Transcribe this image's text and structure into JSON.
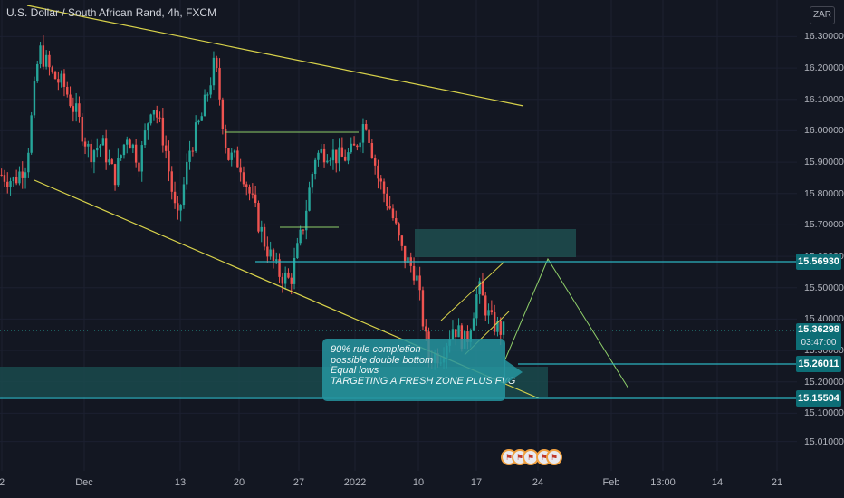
{
  "chart_title": "U.S. Dollar / South African Rand, 4h, FXCM",
  "currency": "ZAR",
  "chart_data": {
    "type": "candlestick",
    "symbol": "USDZAR",
    "timeframe": "4h",
    "x_tick_labels": [
      "2",
      "Dec",
      "13",
      "20",
      "27",
      "2022",
      "10",
      "17",
      "24",
      "Feb",
      "13:00",
      "14",
      "21"
    ],
    "y_tick_labels": [
      "16.30000",
      "16.20000",
      "16.10000",
      "16.00000",
      "15.90000",
      "15.80000",
      "15.70000",
      "15.60000",
      "15.50000",
      "15.40000",
      "15.30000",
      "15.20000",
      "15.10000",
      "15.01000"
    ],
    "ylim": [
      14.98,
      16.33
    ],
    "price_levels": [
      {
        "label": "15.56930",
        "value": 15.5693
      },
      {
        "label": "15.26011",
        "value": 15.26011
      },
      {
        "label": "15.15504",
        "value": 15.15504
      }
    ],
    "current_price": "15.36298",
    "countdown": "03:47:00",
    "close_path": [
      15.86,
      15.84,
      15.9,
      16.26,
      16.18,
      16.14,
      16.05,
      15.93,
      15.96,
      15.85,
      15.99,
      15.9,
      16.1,
      15.96,
      15.7,
      15.94,
      16.05,
      16.22,
      15.92,
      15.9,
      15.77,
      15.64,
      15.55,
      15.52,
      15.69,
      15.92,
      15.94,
      15.91,
      15.93,
      16.04,
      15.85,
      15.75,
      15.6,
      15.55,
      15.28,
      15.29,
      15.38,
      15.32,
      15.5,
      15.39,
      15.36
    ],
    "colors": {
      "up": "#26a69a",
      "down": "#ef5350",
      "trendline": "#d8d24a",
      "level": "#2bb3c0",
      "projection": "#8fcf6a"
    }
  },
  "annotation": {
    "line1": "90% rule completion",
    "line2": "possible double bottom",
    "line3": "Equal lows",
    "line4": "TARGETING A FRESH ZONE PLUS FVG"
  },
  "event_icons": [
    "flag-icon",
    "flag-icon",
    "flag-icon",
    "flag-icon",
    "flag-icon"
  ]
}
